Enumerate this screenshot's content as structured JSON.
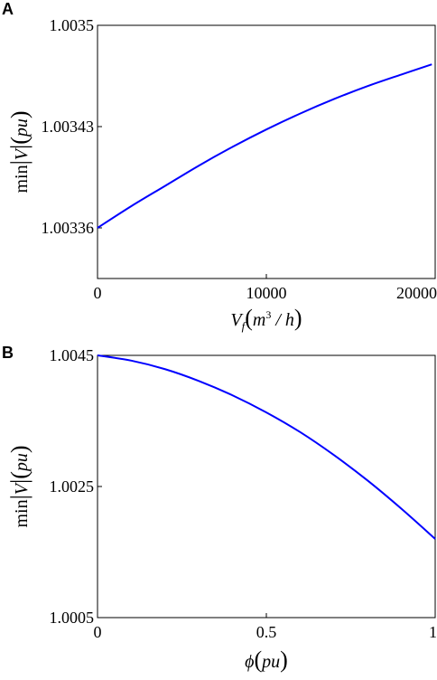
{
  "chart_data": [
    {
      "panel": "A",
      "type": "line",
      "xlabel": {
        "var": "V",
        "sub": "f",
        "unit_pre": "m",
        "unit_sup": "3",
        "unit_post": " / h"
      },
      "ylabel": {
        "pre": "min",
        "var": "V",
        "unit": "pu"
      },
      "xlim": [
        0,
        20000
      ],
      "ylim": [
        1.003325,
        1.0035
      ],
      "xticks": [
        0,
        10000,
        20000
      ],
      "xtick_labels": [
        "0",
        "10000",
        "20000"
      ],
      "yticks": [
        1.00336,
        1.00343,
        1.0035
      ],
      "ytick_labels": [
        "1.00336",
        "1.00343",
        "1.0035"
      ],
      "grid": false,
      "series": [
        {
          "color": "#0000ff",
          "x": [
            0,
            2000,
            4000,
            6000,
            8000,
            10000,
            12000,
            14000,
            16000,
            18000,
            19800
          ],
          "y": [
            1.00336,
            1.003375,
            1.003389,
            1.003403,
            1.003416,
            1.003428,
            1.003439,
            1.003449,
            1.003458,
            1.003466,
            1.003473
          ]
        }
      ]
    },
    {
      "panel": "B",
      "type": "line",
      "xlabel": {
        "var": "ϕ",
        "unit": "pu"
      },
      "ylabel": {
        "pre": "min",
        "var": "V",
        "unit": "pu"
      },
      "xlim": [
        0,
        1
      ],
      "ylim": [
        1.0005,
        1.0045
      ],
      "xticks": [
        0,
        0.5,
        1
      ],
      "xtick_labels": [
        "0",
        "0.5",
        "1"
      ],
      "yticks": [
        1.0045,
        1.0025,
        1.0005
      ],
      "ytick_labels": [
        "1.0045",
        "1.0025",
        "1.0005"
      ],
      "grid": false,
      "series": [
        {
          "color": "#0000ff",
          "x": [
            0,
            0.1,
            0.2,
            0.3,
            0.4,
            0.5,
            0.6,
            0.7,
            0.8,
            0.9,
            1.0
          ],
          "y": [
            1.0045,
            1.00442,
            1.00429,
            1.00411,
            1.00389,
            1.00363,
            1.00333,
            1.00298,
            1.00259,
            1.00216,
            1.0017
          ]
        }
      ]
    }
  ]
}
